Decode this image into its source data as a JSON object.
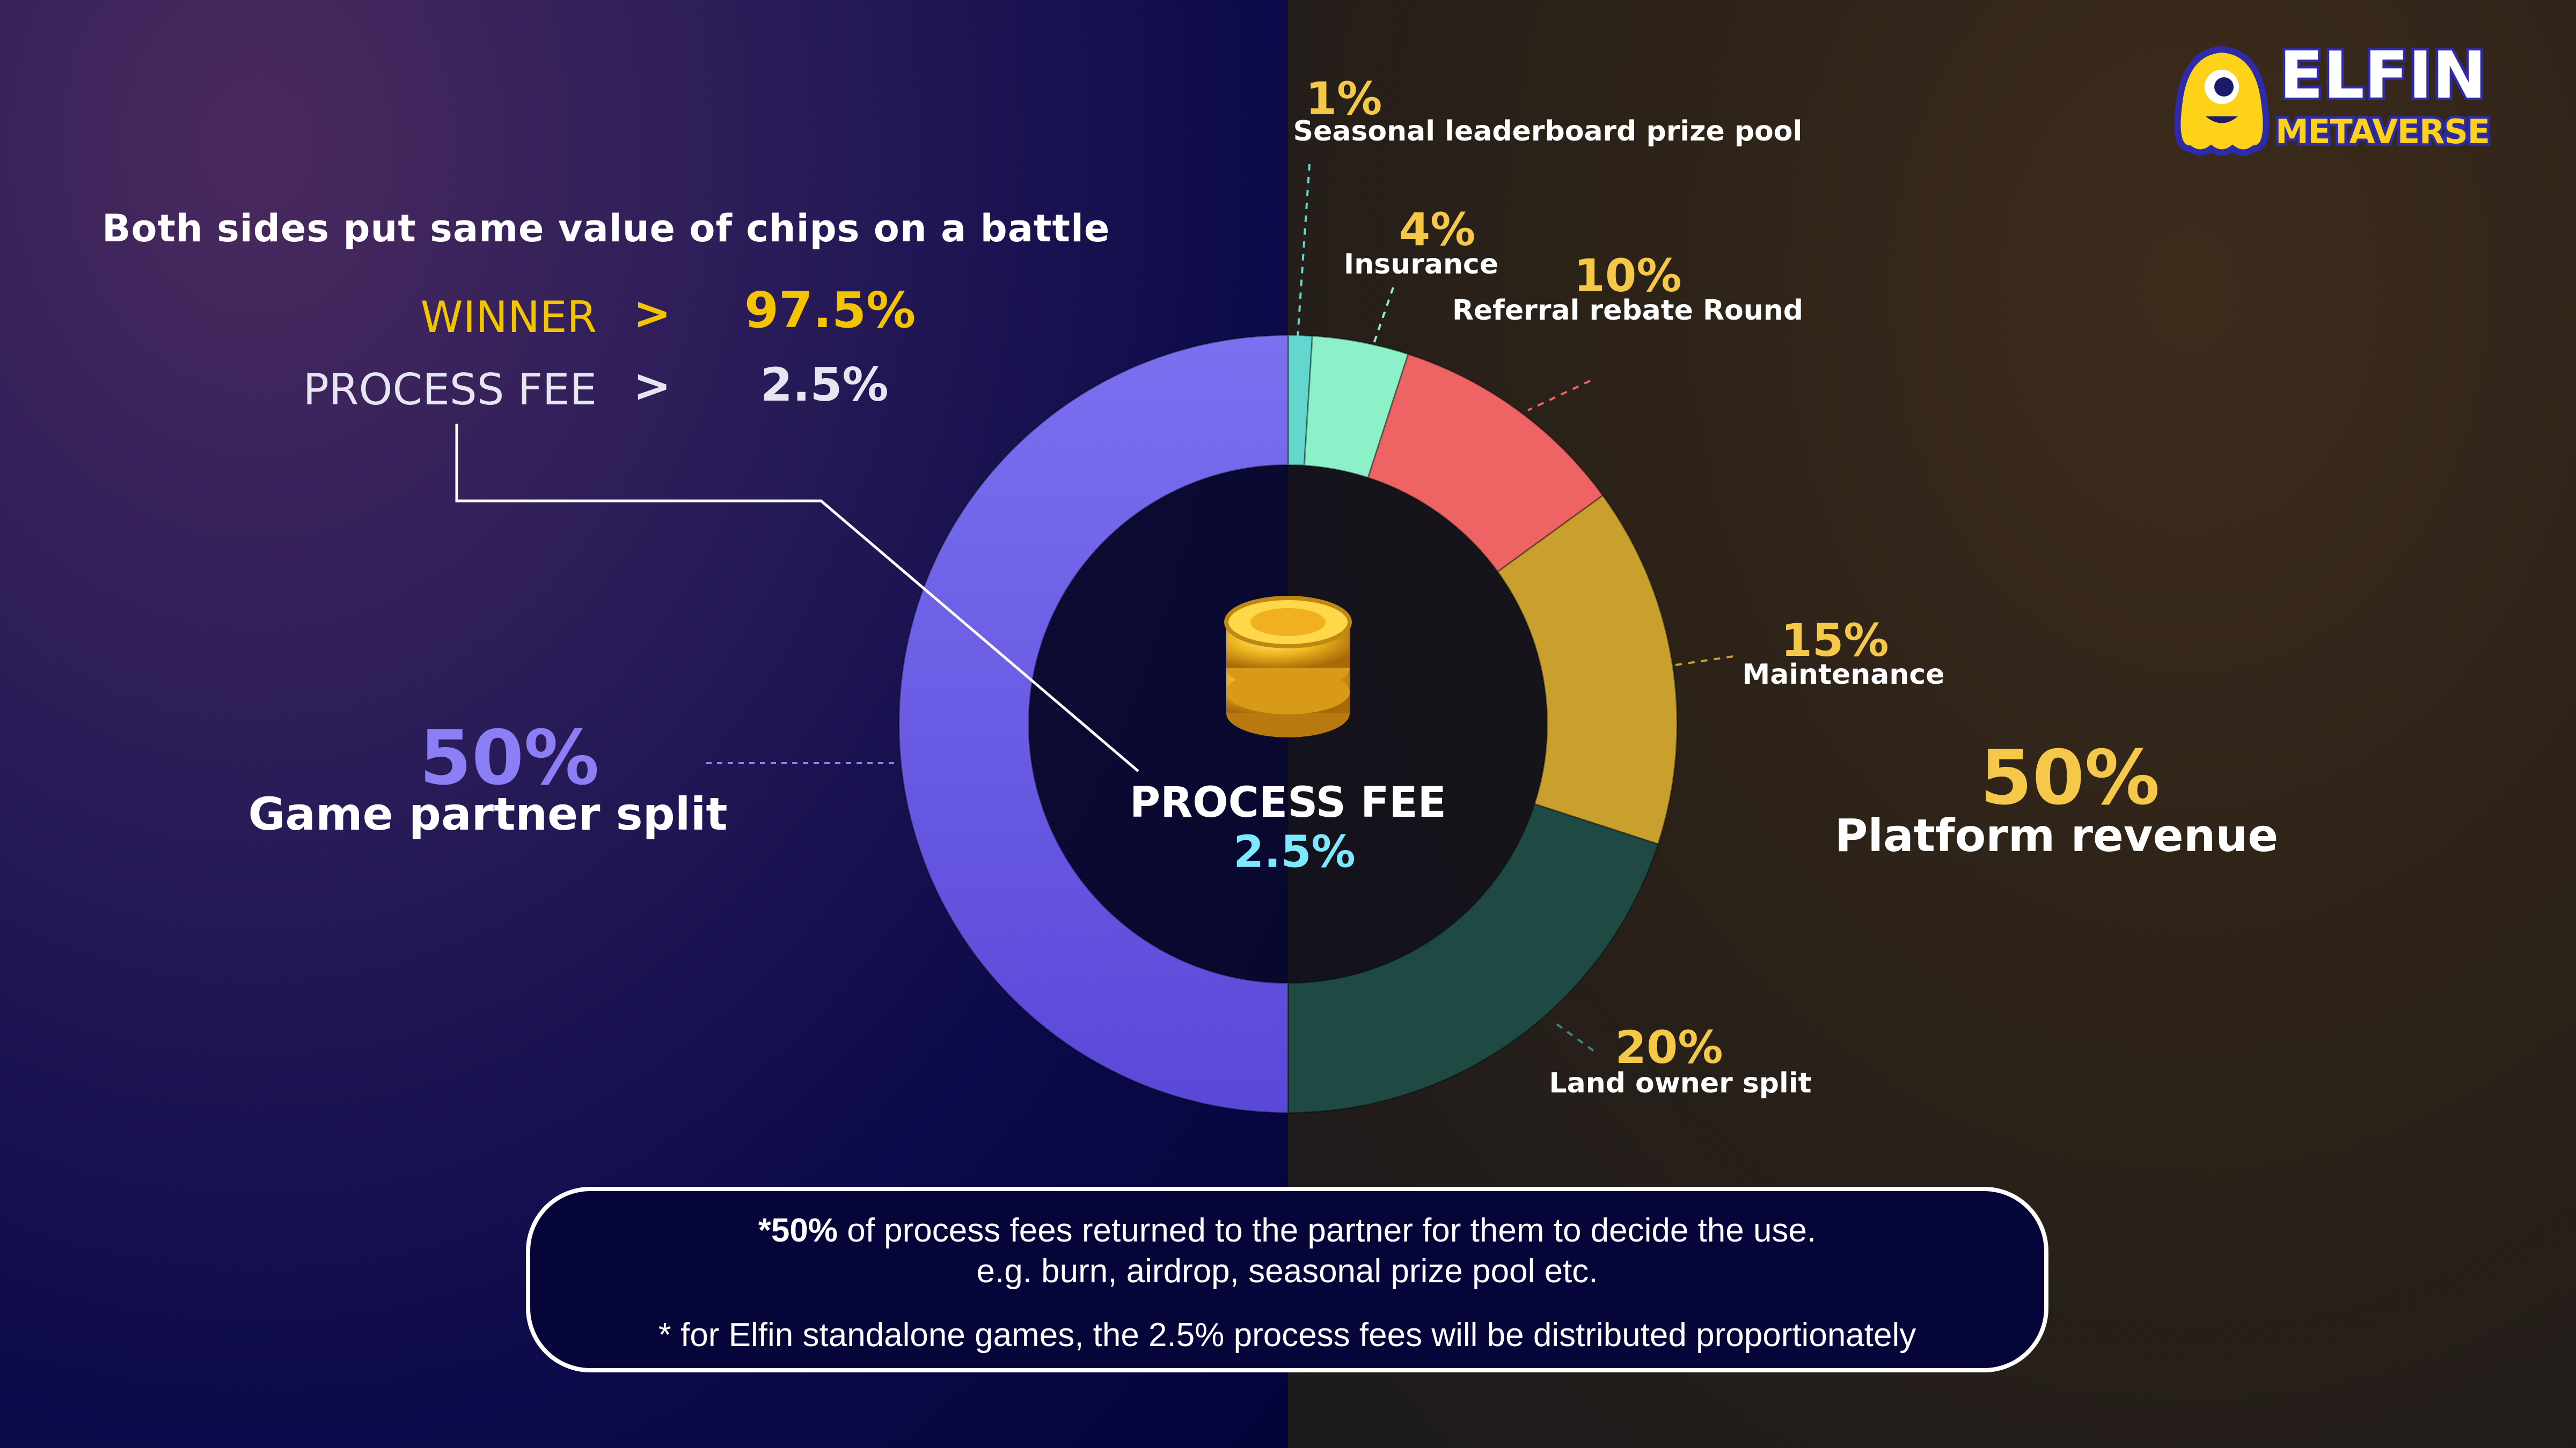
{
  "header": {
    "headline": "Both sides put same value of chips on a battle",
    "winner_label": "WINNER",
    "winner_value": "97.5%",
    "fee_label": "PROCESS FEE",
    "fee_value": "2.5%",
    "arrow": ">"
  },
  "logo": {
    "text_top": "ELFIN",
    "text_bottom": "METAVERSE"
  },
  "center": {
    "label": "PROCESS FEE",
    "value": "2.5%",
    "icon": "coin-stack-icon"
  },
  "left_group": {
    "pct": "50%",
    "label": "Game partner split"
  },
  "right_group": {
    "pct": "50%",
    "label": "Platform revenue"
  },
  "chart_data": {
    "type": "pie",
    "donut": true,
    "title": "",
    "start": "top",
    "direction": "clockwise",
    "categories": [
      "Seasonal leaderboard prize pool",
      "Insurance",
      "Referral rebate Round",
      "Maintenance",
      "Land owner split",
      "Game partner split"
    ],
    "values": [
      1,
      4,
      10,
      15,
      20,
      50
    ],
    "labels": [
      "1%",
      "4%",
      "10%",
      "15%",
      "20%",
      "50%"
    ],
    "colors": [
      "#62d6cf",
      "#8cf0c8",
      "#ee6464",
      "#c9a02e",
      "#1f4a44",
      "#6a5ce6"
    ]
  },
  "notes": {
    "line1_bold": "*50%",
    "line1_rest": " of process fees returned to the partner for them to decide the use.",
    "line2": "e.g. burn, airdrop, seasonal prize pool etc.",
    "line3": "* for Elfin standalone games, the 2.5% process fees will be distributed proportionately"
  }
}
